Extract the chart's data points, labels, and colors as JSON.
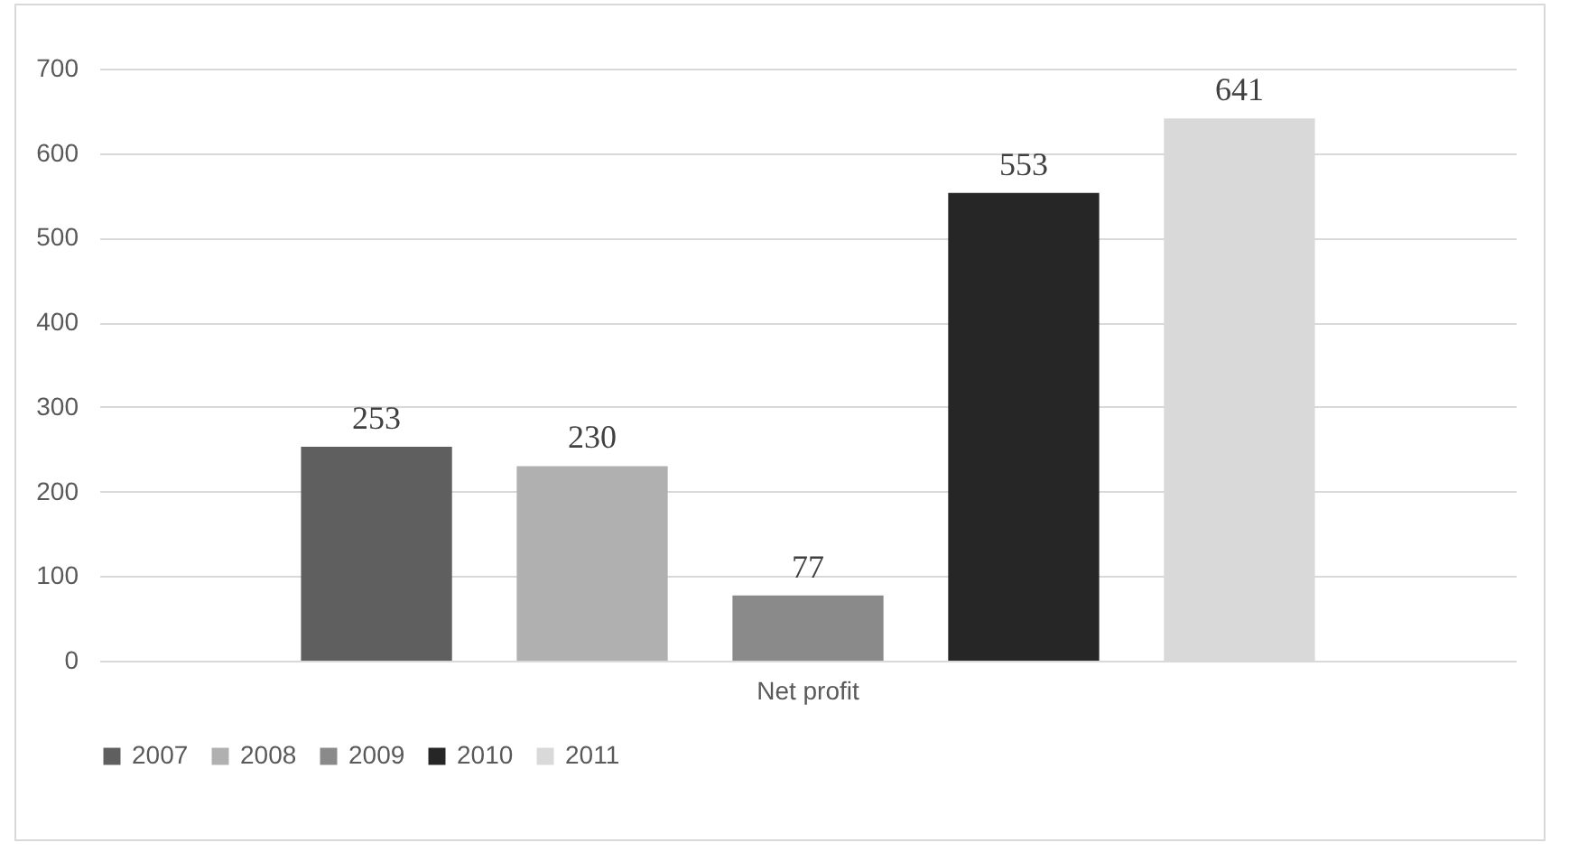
{
  "chart_data": {
    "type": "bar",
    "categories": [
      "Net profit"
    ],
    "series": [
      {
        "name": "2007",
        "color": "#5f5f5f",
        "values": [
          253
        ]
      },
      {
        "name": "2008",
        "color": "#b0b0b0",
        "values": [
          230
        ]
      },
      {
        "name": "2009",
        "color": "#8a8a8a",
        "values": [
          77
        ]
      },
      {
        "name": "2010",
        "color": "#262626",
        "values": [
          553
        ]
      },
      {
        "name": "2011",
        "color": "#d9d9d9",
        "values": [
          641
        ]
      }
    ],
    "ylim": [
      0,
      700
    ],
    "yticks": [
      0,
      100,
      200,
      300,
      400,
      500,
      600,
      700
    ],
    "grid": "y",
    "legend": "bottom",
    "data_labels": true
  }
}
